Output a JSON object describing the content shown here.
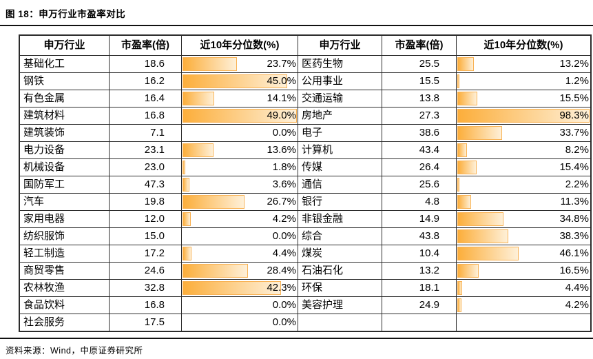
{
  "title": "图 18：申万行业市盈率对比",
  "source": "资料来源：Wind，中原证券研究所",
  "colors": {
    "bar_gradient_start": "#FCAE3B",
    "bar_gradient_end": "#FEF0D8",
    "bar_border": "#F8B254",
    "grid_line": "#2B2B2B",
    "rule_line": "#111111"
  },
  "table": {
    "headers": {
      "industry": "申万行业",
      "pe": "市盈率(倍)",
      "percentile": "近10年分位数(%)"
    },
    "row_count": 16,
    "left_max_percentile": 49.0,
    "right_max_percentile": 98.3,
    "left_rows": [
      {
        "industry": "基础化工",
        "pe": "18.6",
        "pct_label": "23.7%",
        "pct": 23.7
      },
      {
        "industry": "钢铁",
        "pe": "16.2",
        "pct_label": "45.0%",
        "pct": 45.0
      },
      {
        "industry": "有色金属",
        "pe": "16.4",
        "pct_label": "14.1%",
        "pct": 14.1
      },
      {
        "industry": "建筑材料",
        "pe": "16.8",
        "pct_label": "49.0%",
        "pct": 49.0
      },
      {
        "industry": "建筑装饰",
        "pe": "7.1",
        "pct_label": "0.0%",
        "pct": 0.0
      },
      {
        "industry": "电力设备",
        "pe": "23.1",
        "pct_label": "13.6%",
        "pct": 13.6
      },
      {
        "industry": "机械设备",
        "pe": "23.0",
        "pct_label": "1.8%",
        "pct": 1.8
      },
      {
        "industry": "国防军工",
        "pe": "47.3",
        "pct_label": "3.6%",
        "pct": 3.6
      },
      {
        "industry": "汽车",
        "pe": "19.8",
        "pct_label": "26.7%",
        "pct": 26.7
      },
      {
        "industry": "家用电器",
        "pe": "12.0",
        "pct_label": "4.2%",
        "pct": 4.2
      },
      {
        "industry": "纺织服饰",
        "pe": "15.0",
        "pct_label": "0.0%",
        "pct": 0.0
      },
      {
        "industry": "轻工制造",
        "pe": "17.2",
        "pct_label": "4.4%",
        "pct": 4.4
      },
      {
        "industry": "商贸零售",
        "pe": "24.6",
        "pct_label": "28.4%",
        "pct": 28.4
      },
      {
        "industry": "农林牧渔",
        "pe": "32.8",
        "pct_label": "42.3%",
        "pct": 42.3
      },
      {
        "industry": "食品饮料",
        "pe": "16.8",
        "pct_label": "0.0%",
        "pct": 0.0
      },
      {
        "industry": "社会服务",
        "pe": "17.5",
        "pct_label": "0.0%",
        "pct": 0.0
      }
    ],
    "right_rows": [
      {
        "industry": "医药生物",
        "pe": "25.5",
        "pct_label": "13.2%",
        "pct": 13.2
      },
      {
        "industry": "公用事业",
        "pe": "15.5",
        "pct_label": "1.2%",
        "pct": 1.2
      },
      {
        "industry": "交通运输",
        "pe": "13.8",
        "pct_label": "15.5%",
        "pct": 15.5
      },
      {
        "industry": "房地产",
        "pe": "27.3",
        "pct_label": "98.3%",
        "pct": 98.3
      },
      {
        "industry": "电子",
        "pe": "38.6",
        "pct_label": "33.7%",
        "pct": 33.7
      },
      {
        "industry": "计算机",
        "pe": "43.4",
        "pct_label": "8.2%",
        "pct": 8.2
      },
      {
        "industry": "传媒",
        "pe": "26.4",
        "pct_label": "15.4%",
        "pct": 15.4
      },
      {
        "industry": "通信",
        "pe": "25.6",
        "pct_label": "2.2%",
        "pct": 2.2
      },
      {
        "industry": "银行",
        "pe": "4.8",
        "pct_label": "11.3%",
        "pct": 11.3
      },
      {
        "industry": "非银金融",
        "pe": "14.9",
        "pct_label": "34.8%",
        "pct": 34.8
      },
      {
        "industry": "综合",
        "pe": "43.8",
        "pct_label": "38.3%",
        "pct": 38.3
      },
      {
        "industry": "煤炭",
        "pe": "10.4",
        "pct_label": "46.1%",
        "pct": 46.1
      },
      {
        "industry": "石油石化",
        "pe": "13.2",
        "pct_label": "16.5%",
        "pct": 16.5
      },
      {
        "industry": "环保",
        "pe": "18.1",
        "pct_label": "4.4%",
        "pct": 4.4
      },
      {
        "industry": "美容护理",
        "pe": "24.9",
        "pct_label": "4.2%",
        "pct": 4.2
      }
    ]
  },
  "chart_data": {
    "type": "table",
    "title": "图 18：申万行业市盈率对比",
    "columns": [
      "申万行业",
      "市盈率(倍)",
      "近10年分位数(%)"
    ],
    "bar_column": "近10年分位数(%)",
    "bar_scale_left_panel": [
      0,
      49.0
    ],
    "bar_scale_right_panel": [
      0,
      98.3
    ],
    "rows": [
      [
        "基础化工",
        18.6,
        23.7
      ],
      [
        "钢铁",
        16.2,
        45.0
      ],
      [
        "有色金属",
        16.4,
        14.1
      ],
      [
        "建筑材料",
        16.8,
        49.0
      ],
      [
        "建筑装饰",
        7.1,
        0.0
      ],
      [
        "电力设备",
        23.1,
        13.6
      ],
      [
        "机械设备",
        23.0,
        1.8
      ],
      [
        "国防军工",
        47.3,
        3.6
      ],
      [
        "汽车",
        19.8,
        26.7
      ],
      [
        "家用电器",
        12.0,
        4.2
      ],
      [
        "纺织服饰",
        15.0,
        0.0
      ],
      [
        "轻工制造",
        17.2,
        4.4
      ],
      [
        "商贸零售",
        24.6,
        28.4
      ],
      [
        "农林牧渔",
        32.8,
        42.3
      ],
      [
        "食品饮料",
        16.8,
        0.0
      ],
      [
        "社会服务",
        17.5,
        0.0
      ],
      [
        "医药生物",
        25.5,
        13.2
      ],
      [
        "公用事业",
        15.5,
        1.2
      ],
      [
        "交通运输",
        13.8,
        15.5
      ],
      [
        "房地产",
        27.3,
        98.3
      ],
      [
        "电子",
        38.6,
        33.7
      ],
      [
        "计算机",
        43.4,
        8.2
      ],
      [
        "传媒",
        26.4,
        15.4
      ],
      [
        "通信",
        25.6,
        2.2
      ],
      [
        "银行",
        4.8,
        11.3
      ],
      [
        "非银金融",
        14.9,
        34.8
      ],
      [
        "综合",
        43.8,
        38.3
      ],
      [
        "煤炭",
        10.4,
        46.1
      ],
      [
        "石油石化",
        13.2,
        16.5
      ],
      [
        "环保",
        18.1,
        4.4
      ],
      [
        "美容护理",
        24.9,
        4.2
      ]
    ],
    "source": "资料来源：Wind，中原证券研究所"
  }
}
